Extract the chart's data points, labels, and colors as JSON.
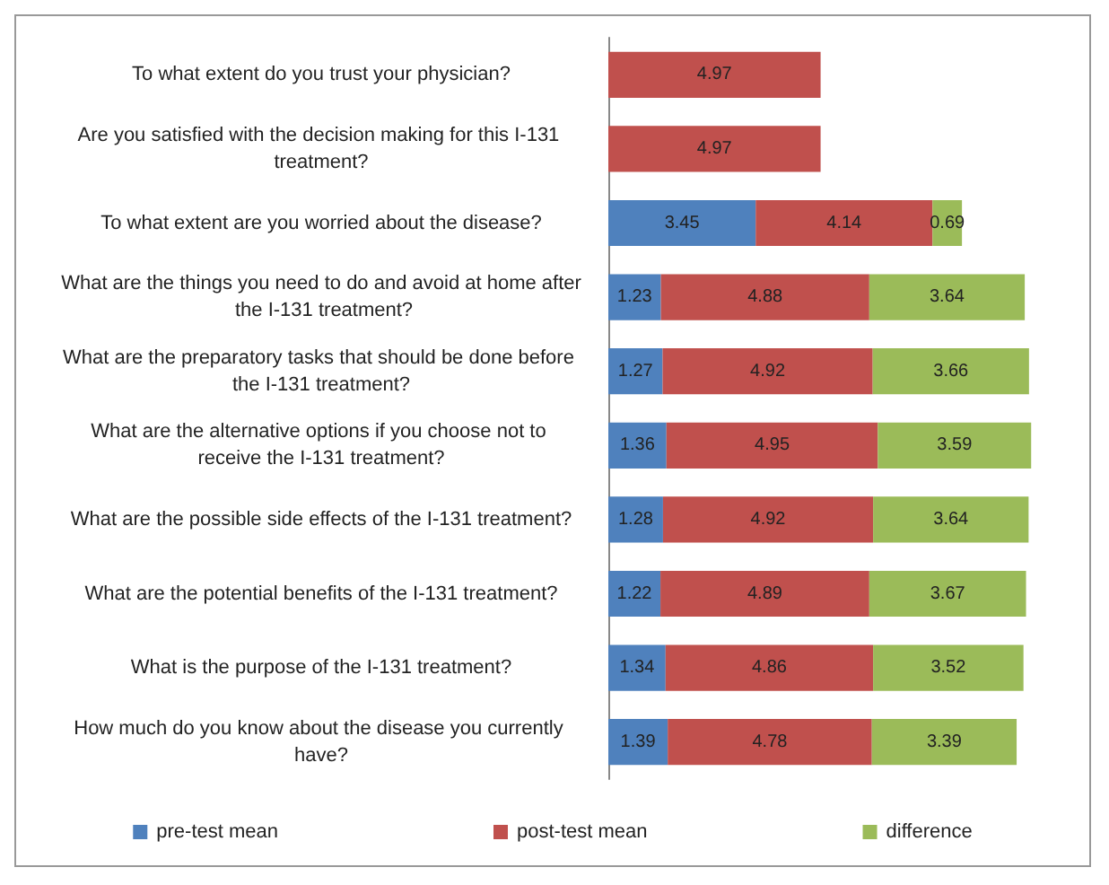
{
  "chart_data": {
    "type": "bar",
    "orientation": "horizontal",
    "stacked": true,
    "data_labels": true,
    "legend": "bottom",
    "categories": [
      "To what extent do you trust your physician?",
      "Are you satisfied with the decision making for this I-131 treatment?",
      "To what extent are you worried about the disease?",
      "What are the things you need to do and avoid at home after the I-131 treatment?",
      "What are the preparatory tasks that should be done before the I-131 treatment?",
      "What are the alternative options if you choose not to receive the I-131 treatment?",
      "What are the possible side effects of the I-131 treatment?",
      "What are the potential benefits of the I-131 treatment?",
      "What is the purpose of the I-131 treatment?",
      "How much do you know about the disease you currently have?"
    ],
    "series": [
      {
        "name": "pre-test mean",
        "color": "#4f81bd",
        "values": [
          null,
          null,
          3.45,
          1.23,
          1.27,
          1.36,
          1.28,
          1.22,
          1.34,
          1.39
        ]
      },
      {
        "name": "post-test mean",
        "color": "#c0504d",
        "values": [
          4.97,
          4.97,
          4.14,
          4.88,
          4.92,
          4.95,
          4.92,
          4.89,
          4.86,
          4.78
        ]
      },
      {
        "name": "difference",
        "color": "#9bbb59",
        "values": [
          null,
          null,
          0.69,
          3.64,
          3.66,
          3.59,
          3.64,
          3.67,
          3.52,
          3.39
        ]
      }
    ]
  }
}
